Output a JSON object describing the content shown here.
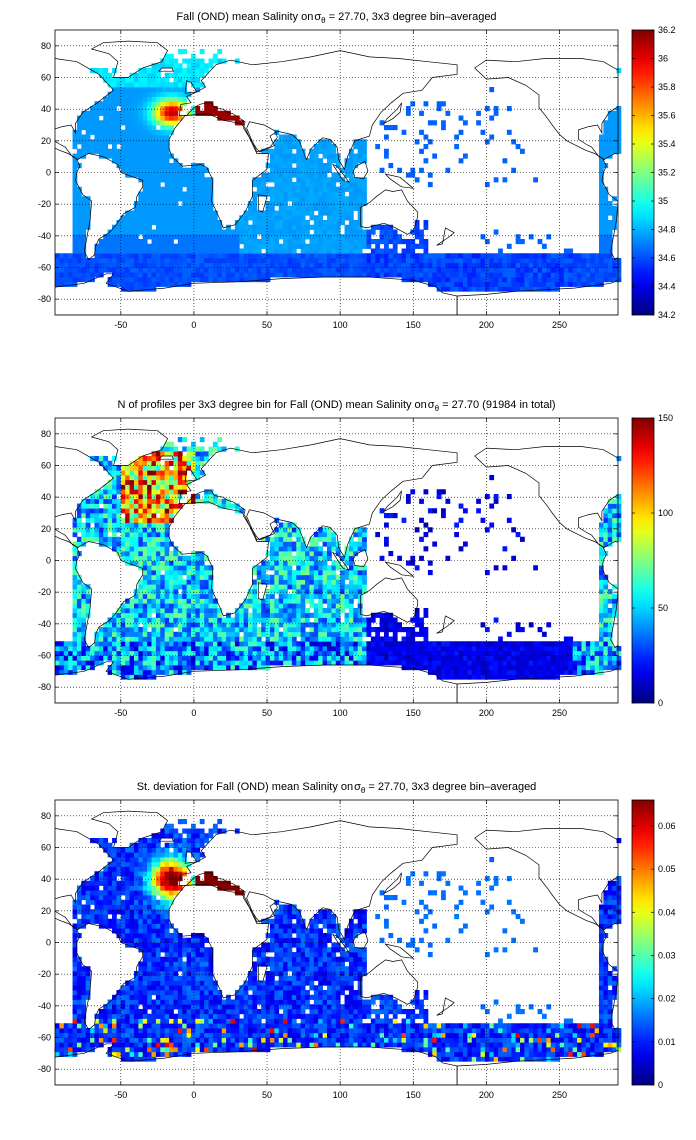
{
  "chart_data": [
    {
      "type": "heatmap",
      "title": "Fall (OND) mean Salinity on",
      "title_symbol": "σ",
      "title_subscript": "θ",
      "title_rest": " = 27.70, 3x3 degree bin–averaged",
      "xlim": [
        -95,
        290
      ],
      "ylim": [
        -90,
        90
      ],
      "xticks": [
        -50,
        0,
        50,
        100,
        150,
        200,
        250
      ],
      "yticks": [
        -80,
        -60,
        -40,
        -20,
        0,
        20,
        40,
        60,
        80
      ],
      "colorbar": {
        "min": 34.2,
        "max": 36.2,
        "ticks": [
          "34.2",
          "34.4",
          "34.6",
          "34.8",
          "35",
          "35.2",
          "35.4",
          "35.6",
          "35.8",
          "36",
          "36.2"
        ]
      },
      "grid": true,
      "field": "salinity"
    },
    {
      "type": "heatmap",
      "title": "N of profiles per 3x3 degree bin for Fall (OND) mean Salinity on",
      "title_symbol": "σ",
      "title_subscript": "θ",
      "title_rest": " = 27.70 (91984 in total)",
      "xlim": [
        -95,
        290
      ],
      "ylim": [
        -90,
        90
      ],
      "xticks": [
        -50,
        0,
        50,
        100,
        150,
        200,
        250
      ],
      "yticks": [
        -80,
        -60,
        -40,
        -20,
        0,
        20,
        40,
        60,
        80
      ],
      "colorbar": {
        "min": 0,
        "max": 150,
        "ticks": [
          "0",
          "50",
          "100",
          "150"
        ]
      },
      "grid": true,
      "field": "count"
    },
    {
      "type": "heatmap",
      "title": "St. deviation for Fall (OND) mean Salinity on",
      "title_symbol": "σ",
      "title_subscript": "θ",
      "title_rest": " = 27.70, 3x3 degree bin–averaged",
      "xlim": [
        -95,
        290
      ],
      "ylim": [
        -90,
        90
      ],
      "xticks": [
        -50,
        0,
        50,
        100,
        150,
        200,
        250
      ],
      "yticks": [
        -80,
        -60,
        -40,
        -20,
        0,
        20,
        40,
        60,
        80
      ],
      "colorbar": {
        "min": 0,
        "max": 0.066,
        "ticks": [
          "0",
          "0.01",
          "0.02",
          "0.03",
          "0.04",
          "0.05",
          "0.06"
        ]
      },
      "grid": true,
      "field": "std"
    }
  ]
}
